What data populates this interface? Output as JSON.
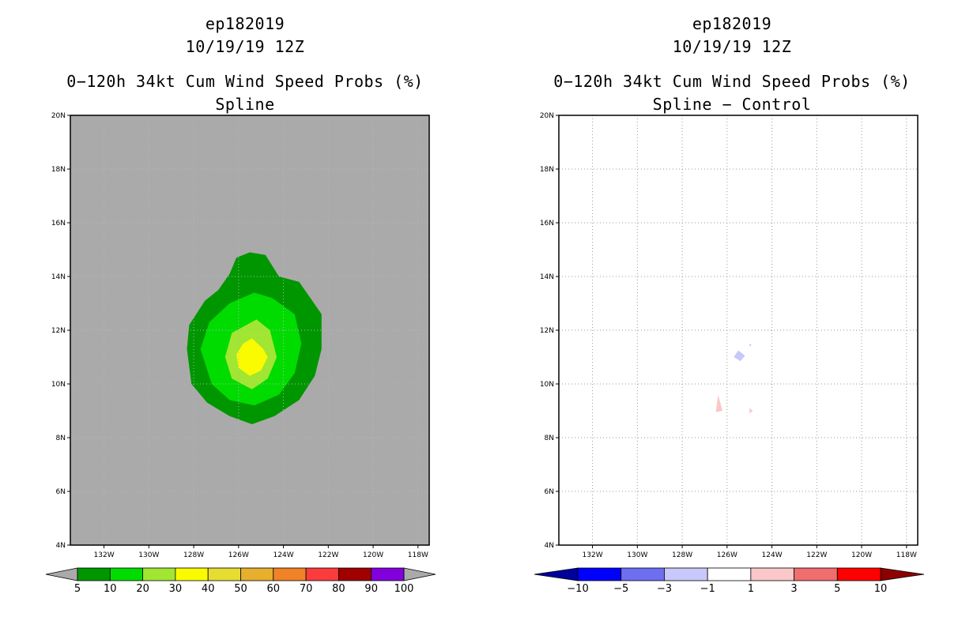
{
  "panels": [
    {
      "storm": "ep182019",
      "date": "10/19/19 12Z",
      "metric": "0−120h 34kt Cum Wind Speed Probs (%)",
      "subtitle": "Spline"
    },
    {
      "storm": "ep182019",
      "date": "10/19/19 12Z",
      "metric": "0−120h 34kt Cum Wind Speed Probs (%)",
      "subtitle": "Spline − Control"
    }
  ],
  "chart_data": [
    {
      "type": "contour",
      "panel": "left",
      "title": "0−120h 34kt Cum Wind Speed Probs (%) — Spline",
      "xlim": [
        -133.5,
        -117.5
      ],
      "ylim": [
        4,
        20
      ],
      "x_ticks": [
        -132,
        -130,
        -128,
        -126,
        -124,
        -122,
        -120,
        -118
      ],
      "x_tick_labels": [
        "132W",
        "130W",
        "128W",
        "126W",
        "124W",
        "122W",
        "120W",
        "118W"
      ],
      "y_ticks": [
        4,
        6,
        8,
        10,
        12,
        14,
        16,
        18,
        20
      ],
      "y_tick_labels": [
        "4N",
        "6N",
        "8N",
        "10N",
        "12N",
        "14N",
        "16N",
        "18N",
        "20N"
      ],
      "background": "#aaaaaa",
      "contours": [
        {
          "level": 5,
          "color": "#009600",
          "points": [
            [
              -125.5,
              14.9
            ],
            [
              -124.8,
              14.8
            ],
            [
              -124.2,
              14.0
            ],
            [
              -123.3,
              13.8
            ],
            [
              -122.3,
              12.6
            ],
            [
              -122.3,
              11.3
            ],
            [
              -122.6,
              10.3
            ],
            [
              -123.3,
              9.4
            ],
            [
              -124.4,
              8.8
            ],
            [
              -125.4,
              8.5
            ],
            [
              -126.4,
              8.8
            ],
            [
              -127.4,
              9.3
            ],
            [
              -128.1,
              10.0
            ],
            [
              -128.3,
              11.3
            ],
            [
              -128.2,
              12.2
            ],
            [
              -127.5,
              13.1
            ],
            [
              -126.9,
              13.5
            ],
            [
              -126.4,
              14.1
            ],
            [
              -126.1,
              14.7
            ]
          ]
        },
        {
          "level": 10,
          "color": "#00dc00",
          "points": [
            [
              -125.3,
              13.4
            ],
            [
              -124.5,
              13.2
            ],
            [
              -123.5,
              12.6
            ],
            [
              -123.2,
              11.5
            ],
            [
              -123.5,
              10.4
            ],
            [
              -124.2,
              9.6
            ],
            [
              -125.3,
              9.2
            ],
            [
              -126.4,
              9.4
            ],
            [
              -127.2,
              10.0
            ],
            [
              -127.7,
              11.3
            ],
            [
              -127.3,
              12.3
            ],
            [
              -126.4,
              13.0
            ]
          ]
        },
        {
          "level": 20,
          "color": "#a0e632",
          "points": [
            [
              -125.2,
              12.4
            ],
            [
              -124.6,
              12.0
            ],
            [
              -124.3,
              11.0
            ],
            [
              -124.7,
              10.2
            ],
            [
              -125.4,
              9.8
            ],
            [
              -126.3,
              10.2
            ],
            [
              -126.6,
              11.0
            ],
            [
              -126.3,
              11.9
            ]
          ]
        },
        {
          "level": 30,
          "color": "#fafa00",
          "points": [
            [
              -125.4,
              11.7
            ],
            [
              -124.9,
              11.3
            ],
            [
              -124.7,
              11.0
            ],
            [
              -125.0,
              10.5
            ],
            [
              -125.5,
              10.3
            ],
            [
              -126.0,
              10.6
            ],
            [
              -126.1,
              11.1
            ],
            [
              -125.8,
              11.5
            ]
          ]
        }
      ],
      "colorbar": {
        "labels": [
          "5",
          "10",
          "20",
          "30",
          "40",
          "50",
          "60",
          "70",
          "80",
          "90",
          "100"
        ],
        "colors": [
          "#009600",
          "#00dc00",
          "#a0e632",
          "#fafa00",
          "#e6dc32",
          "#e6af2d",
          "#f08228",
          "#fa3c3c",
          "#a00000",
          "#8200dc"
        ],
        "under_color": "#aaaaaa",
        "over_color": "#aaaaaa"
      }
    },
    {
      "type": "contour",
      "panel": "right",
      "title": "0−120h 34kt Cum Wind Speed Probs (%) — Spline − Control",
      "xlim": [
        -133.5,
        -117.5
      ],
      "ylim": [
        4,
        20
      ],
      "x_ticks": [
        -132,
        -130,
        -128,
        -126,
        -124,
        -122,
        -120,
        -118
      ],
      "x_tick_labels": [
        "132W",
        "130W",
        "128W",
        "126W",
        "124W",
        "122W",
        "120W",
        "118W"
      ],
      "y_ticks": [
        4,
        6,
        8,
        10,
        12,
        14,
        16,
        18,
        20
      ],
      "y_tick_labels": [
        "4N",
        "6N",
        "8N",
        "10N",
        "12N",
        "14N",
        "16N",
        "18N",
        "20N"
      ],
      "grid": true,
      "background": "#ffffff",
      "blobs": [
        {
          "value_range": "-3 to -1",
          "color": "#c8c8fa",
          "points": [
            [
              -125.5,
              11.25
            ],
            [
              -125.2,
              11.05
            ],
            [
              -125.4,
              10.85
            ],
            [
              -125.7,
              11.0
            ]
          ]
        },
        {
          "value_range": "-3 to -1",
          "color": "#c8c8fa",
          "points": [
            [
              -125.0,
              11.5
            ],
            [
              -124.9,
              11.45
            ],
            [
              -125.0,
              11.4
            ]
          ]
        },
        {
          "value_range": "1 to 3",
          "color": "#fac8c8",
          "points": [
            [
              -126.4,
              9.6
            ],
            [
              -126.2,
              9.0
            ],
            [
              -126.5,
              8.95
            ]
          ]
        },
        {
          "value_range": "1 to 3",
          "color": "#fac8c8",
          "points": [
            [
              -125.0,
              9.1
            ],
            [
              -124.85,
              9.0
            ],
            [
              -125.0,
              8.9
            ]
          ]
        }
      ],
      "colorbar": {
        "labels": [
          "−10",
          "−5",
          "−3",
          "−1",
          "1",
          "3",
          "5",
          "10"
        ],
        "colors": [
          "#0000ff",
          "#6e6ef0",
          "#c8c8fa",
          "#ffffff",
          "#fac8c8",
          "#f06e6e",
          "#ff0000"
        ],
        "under_color": "#00009b",
        "over_color": "#8c0000"
      }
    }
  ]
}
